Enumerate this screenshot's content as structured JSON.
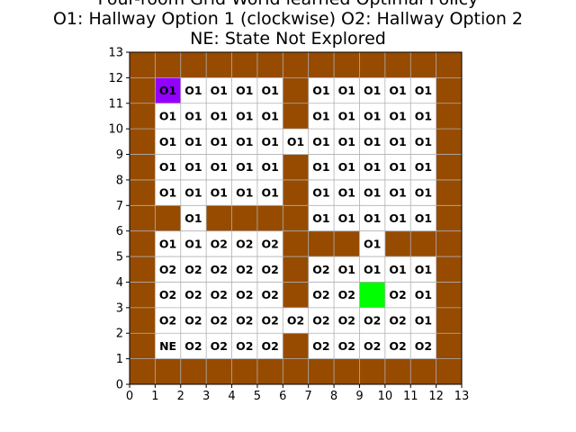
{
  "chart_data": {
    "type": "heatmap",
    "title_lines": [
      "Four-room Grid World learned Optimal Policy",
      "O1: Hallway Option 1 (clockwise) O2: Hallway Option 2",
      "NE: State Not Explored"
    ],
    "xlim": [
      0,
      13
    ],
    "ylim": [
      0,
      13
    ],
    "x_ticks": [
      "0",
      "1",
      "2",
      "3",
      "4",
      "5",
      "6",
      "7",
      "8",
      "9",
      "10",
      "11",
      "12",
      "13"
    ],
    "y_ticks": [
      "0",
      "1",
      "2",
      "3",
      "4",
      "5",
      "6",
      "7",
      "8",
      "9",
      "10",
      "11",
      "12",
      "13"
    ],
    "grid": true,
    "colors": {
      "wall": "#964B00",
      "empty": "#ffffff",
      "start": "#9400FF",
      "goal": "#00FF00",
      "grid": "#b0b0b0"
    },
    "legend_codes": {
      "W": "wall",
      ".": "empty",
      "S": "start",
      "G": "goal"
    },
    "rows_top_to_bottom": [
      "WWWWWWWWWWWWW",
      "WS....W.....W",
      "W.....W.....W",
      "W...........W",
      "W.....W.....W",
      "W.....W.....W",
      "WW.WWWW.....W",
      "W.....WWW.WWW",
      "W.....W.....W",
      "W.....W..G..W",
      "W...........W",
      "W.....W.....W",
      "WWWWWWWWWWWWW"
    ],
    "cell_labels": [
      {
        "x": 1,
        "y": 11,
        "text": "O1"
      },
      {
        "x": 2,
        "y": 11,
        "text": "O1"
      },
      {
        "x": 3,
        "y": 11,
        "text": "O1"
      },
      {
        "x": 4,
        "y": 11,
        "text": "O1"
      },
      {
        "x": 5,
        "y": 11,
        "text": "O1"
      },
      {
        "x": 7,
        "y": 11,
        "text": "O1"
      },
      {
        "x": 8,
        "y": 11,
        "text": "O1"
      },
      {
        "x": 9,
        "y": 11,
        "text": "O1"
      },
      {
        "x": 10,
        "y": 11,
        "text": "O1"
      },
      {
        "x": 11,
        "y": 11,
        "text": "O1"
      },
      {
        "x": 1,
        "y": 10,
        "text": "O1"
      },
      {
        "x": 2,
        "y": 10,
        "text": "O1"
      },
      {
        "x": 3,
        "y": 10,
        "text": "O1"
      },
      {
        "x": 4,
        "y": 10,
        "text": "O1"
      },
      {
        "x": 5,
        "y": 10,
        "text": "O1"
      },
      {
        "x": 7,
        "y": 10,
        "text": "O1"
      },
      {
        "x": 8,
        "y": 10,
        "text": "O1"
      },
      {
        "x": 9,
        "y": 10,
        "text": "O1"
      },
      {
        "x": 10,
        "y": 10,
        "text": "O1"
      },
      {
        "x": 11,
        "y": 10,
        "text": "O1"
      },
      {
        "x": 1,
        "y": 9,
        "text": "O1"
      },
      {
        "x": 2,
        "y": 9,
        "text": "O1"
      },
      {
        "x": 3,
        "y": 9,
        "text": "O1"
      },
      {
        "x": 4,
        "y": 9,
        "text": "O1"
      },
      {
        "x": 5,
        "y": 9,
        "text": "O1"
      },
      {
        "x": 6,
        "y": 9,
        "text": "O1"
      },
      {
        "x": 7,
        "y": 9,
        "text": "O1"
      },
      {
        "x": 8,
        "y": 9,
        "text": "O1"
      },
      {
        "x": 9,
        "y": 9,
        "text": "O1"
      },
      {
        "x": 10,
        "y": 9,
        "text": "O1"
      },
      {
        "x": 11,
        "y": 9,
        "text": "O1"
      },
      {
        "x": 1,
        "y": 8,
        "text": "O1"
      },
      {
        "x": 2,
        "y": 8,
        "text": "O1"
      },
      {
        "x": 3,
        "y": 8,
        "text": "O1"
      },
      {
        "x": 4,
        "y": 8,
        "text": "O1"
      },
      {
        "x": 5,
        "y": 8,
        "text": "O1"
      },
      {
        "x": 7,
        "y": 8,
        "text": "O1"
      },
      {
        "x": 8,
        "y": 8,
        "text": "O1"
      },
      {
        "x": 9,
        "y": 8,
        "text": "O1"
      },
      {
        "x": 10,
        "y": 8,
        "text": "O1"
      },
      {
        "x": 11,
        "y": 8,
        "text": "O1"
      },
      {
        "x": 1,
        "y": 7,
        "text": "O1"
      },
      {
        "x": 2,
        "y": 7,
        "text": "O1"
      },
      {
        "x": 3,
        "y": 7,
        "text": "O1"
      },
      {
        "x": 4,
        "y": 7,
        "text": "O1"
      },
      {
        "x": 5,
        "y": 7,
        "text": "O1"
      },
      {
        "x": 7,
        "y": 7,
        "text": "O1"
      },
      {
        "x": 8,
        "y": 7,
        "text": "O1"
      },
      {
        "x": 9,
        "y": 7,
        "text": "O1"
      },
      {
        "x": 10,
        "y": 7,
        "text": "O1"
      },
      {
        "x": 11,
        "y": 7,
        "text": "O1"
      },
      {
        "x": 2,
        "y": 6,
        "text": "O1"
      },
      {
        "x": 7,
        "y": 6,
        "text": "O1"
      },
      {
        "x": 8,
        "y": 6,
        "text": "O1"
      },
      {
        "x": 9,
        "y": 6,
        "text": "O1"
      },
      {
        "x": 10,
        "y": 6,
        "text": "O1"
      },
      {
        "x": 11,
        "y": 6,
        "text": "O1"
      },
      {
        "x": 1,
        "y": 5,
        "text": "O1"
      },
      {
        "x": 2,
        "y": 5,
        "text": "O1"
      },
      {
        "x": 3,
        "y": 5,
        "text": "O2"
      },
      {
        "x": 4,
        "y": 5,
        "text": "O2"
      },
      {
        "x": 5,
        "y": 5,
        "text": "O2"
      },
      {
        "x": 9,
        "y": 5,
        "text": "O1"
      },
      {
        "x": 1,
        "y": 4,
        "text": "O2"
      },
      {
        "x": 2,
        "y": 4,
        "text": "O2"
      },
      {
        "x": 3,
        "y": 4,
        "text": "O2"
      },
      {
        "x": 4,
        "y": 4,
        "text": "O2"
      },
      {
        "x": 5,
        "y": 4,
        "text": "O2"
      },
      {
        "x": 7,
        "y": 4,
        "text": "O2"
      },
      {
        "x": 8,
        "y": 4,
        "text": "O1"
      },
      {
        "x": 9,
        "y": 4,
        "text": "O1"
      },
      {
        "x": 10,
        "y": 4,
        "text": "O1"
      },
      {
        "x": 11,
        "y": 4,
        "text": "O1"
      },
      {
        "x": 1,
        "y": 3,
        "text": "O2"
      },
      {
        "x": 2,
        "y": 3,
        "text": "O2"
      },
      {
        "x": 3,
        "y": 3,
        "text": "O2"
      },
      {
        "x": 4,
        "y": 3,
        "text": "O2"
      },
      {
        "x": 5,
        "y": 3,
        "text": "O2"
      },
      {
        "x": 7,
        "y": 3,
        "text": "O2"
      },
      {
        "x": 8,
        "y": 3,
        "text": "O2"
      },
      {
        "x": 10,
        "y": 3,
        "text": "O2"
      },
      {
        "x": 11,
        "y": 3,
        "text": "O1"
      },
      {
        "x": 1,
        "y": 2,
        "text": "O2"
      },
      {
        "x": 2,
        "y": 2,
        "text": "O2"
      },
      {
        "x": 3,
        "y": 2,
        "text": "O2"
      },
      {
        "x": 4,
        "y": 2,
        "text": "O2"
      },
      {
        "x": 5,
        "y": 2,
        "text": "O2"
      },
      {
        "x": 6,
        "y": 2,
        "text": "O2"
      },
      {
        "x": 7,
        "y": 2,
        "text": "O2"
      },
      {
        "x": 8,
        "y": 2,
        "text": "O2"
      },
      {
        "x": 9,
        "y": 2,
        "text": "O2"
      },
      {
        "x": 10,
        "y": 2,
        "text": "O2"
      },
      {
        "x": 11,
        "y": 2,
        "text": "O1"
      },
      {
        "x": 1,
        "y": 1,
        "text": "NE"
      },
      {
        "x": 2,
        "y": 1,
        "text": "O2"
      },
      {
        "x": 3,
        "y": 1,
        "text": "O2"
      },
      {
        "x": 4,
        "y": 1,
        "text": "O2"
      },
      {
        "x": 5,
        "y": 1,
        "text": "O2"
      },
      {
        "x": 7,
        "y": 1,
        "text": "O2"
      },
      {
        "x": 8,
        "y": 1,
        "text": "O2"
      },
      {
        "x": 9,
        "y": 1,
        "text": "O2"
      },
      {
        "x": 10,
        "y": 1,
        "text": "O2"
      },
      {
        "x": 11,
        "y": 1,
        "text": "O2"
      }
    ]
  }
}
